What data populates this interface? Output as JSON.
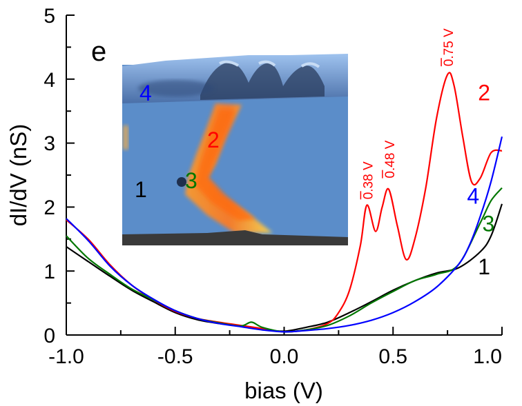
{
  "chart_data": {
    "type": "line",
    "panel_label": "e",
    "xlabel": "bias (V)",
    "ylabel": "dI/dV (nS)",
    "xlim": [
      -1.0,
      1.0
    ],
    "ylim": [
      0,
      5
    ],
    "x_ticks": [
      "-1.0",
      "-0.5",
      "0.0",
      "0.5",
      "1.0"
    ],
    "y_ticks": [
      "0",
      "1",
      "2",
      "3",
      "4",
      "5"
    ],
    "grid": false,
    "series": [
      {
        "name": "1",
        "color": "#000000",
        "x": [
          -1.0,
          -0.9,
          -0.8,
          -0.7,
          -0.6,
          -0.5,
          -0.4,
          -0.3,
          -0.2,
          -0.1,
          0.0,
          0.1,
          0.2,
          0.3,
          0.4,
          0.5,
          0.6,
          0.7,
          0.8,
          0.9,
          0.95,
          1.0
        ],
        "y": [
          1.38,
          1.15,
          0.92,
          0.7,
          0.52,
          0.35,
          0.24,
          0.18,
          0.14,
          0.09,
          0.06,
          0.12,
          0.2,
          0.35,
          0.52,
          0.7,
          0.85,
          0.97,
          1.05,
          1.3,
          1.55,
          2.05
        ]
      },
      {
        "name": "2",
        "color": "#ff0000",
        "x": [
          -1.0,
          -0.9,
          -0.8,
          -0.7,
          -0.6,
          -0.5,
          -0.4,
          -0.3,
          -0.2,
          -0.1,
          0.0,
          0.1,
          0.2,
          0.25,
          0.3,
          0.35,
          0.38,
          0.42,
          0.45,
          0.48,
          0.52,
          0.56,
          0.6,
          0.65,
          0.7,
          0.75,
          0.78,
          0.82,
          0.86,
          0.9,
          0.95,
          1.0
        ],
        "y": [
          1.8,
          1.5,
          1.1,
          0.78,
          0.55,
          0.37,
          0.26,
          0.2,
          0.15,
          0.1,
          0.05,
          0.08,
          0.18,
          0.35,
          0.7,
          1.4,
          2.03,
          1.62,
          2.0,
          2.28,
          1.7,
          1.18,
          1.5,
          2.3,
          3.4,
          4.07,
          3.9,
          3.1,
          2.4,
          2.45,
          2.85,
          2.88
        ]
      },
      {
        "name": "3",
        "color": "#007700",
        "x": [
          -1.0,
          -0.9,
          -0.8,
          -0.7,
          -0.6,
          -0.5,
          -0.4,
          -0.3,
          -0.2,
          -0.15,
          -0.1,
          0.0,
          0.1,
          0.2,
          0.3,
          0.4,
          0.5,
          0.6,
          0.7,
          0.8,
          0.9,
          0.95,
          1.0
        ],
        "y": [
          1.55,
          1.2,
          0.95,
          0.72,
          0.55,
          0.38,
          0.26,
          0.19,
          0.14,
          0.2,
          0.12,
          0.05,
          0.08,
          0.15,
          0.3,
          0.5,
          0.68,
          0.85,
          0.95,
          1.1,
          1.75,
          2.1,
          2.3
        ]
      },
      {
        "name": "4",
        "color": "#0000ff",
        "x": [
          -1.0,
          -0.9,
          -0.8,
          -0.7,
          -0.6,
          -0.5,
          -0.4,
          -0.3,
          -0.2,
          -0.1,
          0.0,
          0.1,
          0.2,
          0.3,
          0.4,
          0.5,
          0.6,
          0.7,
          0.8,
          0.85,
          0.9,
          0.95,
          1.0
        ],
        "y": [
          1.82,
          1.48,
          1.08,
          0.78,
          0.56,
          0.38,
          0.26,
          0.18,
          0.13,
          0.08,
          0.05,
          0.07,
          0.1,
          0.15,
          0.23,
          0.35,
          0.52,
          0.75,
          1.1,
          1.4,
          1.85,
          2.4,
          3.1
        ]
      }
    ],
    "curve_labels": [
      {
        "text": "1",
        "color": "#000000",
        "x": 0.82,
        "y": 1.08
      },
      {
        "text": "2",
        "color": "#ff0000",
        "x": 0.82,
        "y": 3.8
      },
      {
        "text": "3",
        "color": "#007700",
        "x": 0.84,
        "y": 1.75
      },
      {
        "text": "4",
        "color": "#0000ff",
        "x": 0.77,
        "y": 2.18
      }
    ],
    "peak_annotations": [
      {
        "text": "0.38 V",
        "color": "#ff0000",
        "x": 0.38,
        "y": 2.12
      },
      {
        "text": "0.48 V",
        "color": "#ff0000",
        "x": 0.48,
        "y": 2.45
      },
      {
        "text": "0.75 V",
        "color": "#ff0000",
        "x": 0.75,
        "y": 4.2
      }
    ]
  },
  "inset": {
    "labels": [
      {
        "text": "4",
        "color": "#0000ff"
      },
      {
        "text": "2",
        "color": "#ff0000"
      },
      {
        "text": "3",
        "color": "#007700"
      },
      {
        "text": "1",
        "color": "#000000"
      }
    ]
  }
}
